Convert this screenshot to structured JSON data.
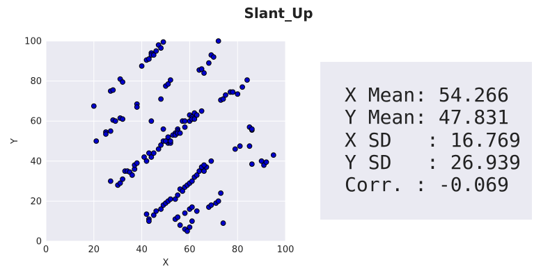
{
  "chart_data": {
    "type": "scatter",
    "title": "Slant_Up",
    "xlabel": "X",
    "ylabel": "Y",
    "xlim": [
      0,
      100
    ],
    "ylim": [
      0,
      100
    ],
    "x_ticks": [
      0,
      20,
      40,
      60,
      80,
      100
    ],
    "y_ticks": [
      0,
      20,
      40,
      60,
      80,
      100
    ],
    "grid": true,
    "colors": {
      "plot_bg": "#eaeaf2",
      "grid": "#ffffff",
      "marker_fill": "#0000cc",
      "marker_edge": "#000000"
    },
    "x": [
      20,
      21,
      25,
      25,
      27,
      27,
      28,
      28,
      29,
      31,
      32,
      31,
      32,
      38,
      38,
      40,
      42,
      43,
      44,
      44,
      45,
      46,
      47,
      48,
      49,
      48,
      50,
      51,
      52,
      44,
      49,
      50,
      51,
      52,
      54,
      55,
      55,
      57,
      58,
      60,
      62,
      61,
      64,
      65,
      66,
      68,
      69,
      70,
      72,
      73,
      74,
      75,
      77,
      78,
      80,
      82,
      84,
      85,
      86,
      86,
      90,
      91,
      92,
      95,
      79,
      81,
      85,
      86,
      27,
      30,
      31,
      32,
      33,
      34,
      35,
      36,
      37,
      37,
      38,
      41,
      42,
      43,
      44,
      45,
      47,
      48,
      49,
      50,
      51,
      52,
      53,
      54,
      55,
      55,
      56,
      58,
      60,
      61,
      62,
      63,
      65,
      66,
      67,
      69,
      42,
      43,
      43,
      45,
      46,
      48,
      49,
      50,
      51,
      52,
      54,
      55,
      56,
      57,
      58,
      59,
      60,
      61,
      62,
      63,
      64,
      65,
      66,
      68,
      69,
      71,
      72,
      73,
      74,
      56,
      58,
      59,
      60,
      61,
      54,
      55,
      58,
      60,
      61,
      63
    ],
    "y": [
      67.5,
      50,
      54.5,
      53.5,
      55,
      75,
      75.5,
      60.5,
      60,
      81,
      79.5,
      61.5,
      61,
      68.5,
      67,
      87.5,
      90.5,
      91,
      94,
      93,
      93,
      95,
      98,
      96.5,
      99.5,
      71,
      77.5,
      78.5,
      80.5,
      60,
      56,
      50,
      49,
      49,
      54,
      56,
      55,
      60,
      60,
      63,
      64,
      62,
      85.5,
      86,
      84,
      89,
      93,
      92,
      100,
      70.5,
      71,
      73,
      74.5,
      74.5,
      73.5,
      77,
      80.5,
      57,
      55.5,
      56,
      40,
      38,
      39.5,
      43,
      46,
      47.5,
      47.5,
      38.5,
      30,
      28,
      29,
      31,
      35,
      35,
      34.5,
      33,
      36,
      38,
      39,
      42,
      40,
      44,
      42,
      44,
      46,
      48,
      50,
      50,
      52,
      50,
      53,
      53,
      54,
      54,
      54,
      57,
      60,
      61,
      61,
      63,
      65,
      35,
      37,
      40,
      13.5,
      11,
      10,
      13,
      15,
      16,
      18,
      19,
      20,
      21,
      21,
      23,
      26,
      25,
      27,
      28,
      29,
      30,
      32,
      33,
      35,
      37,
      38,
      17,
      18,
      19,
      20,
      24,
      9,
      8,
      6,
      5,
      7,
      10,
      11,
      12,
      14,
      16,
      17,
      15
    ]
  },
  "stats": {
    "x_mean": "X Mean: 54.266",
    "y_mean": "Y Mean: 47.831",
    "x_sd": "X SD   : 16.769",
    "y_sd": "Y SD   : 26.939",
    "corr": "Corr. : -0.069"
  }
}
